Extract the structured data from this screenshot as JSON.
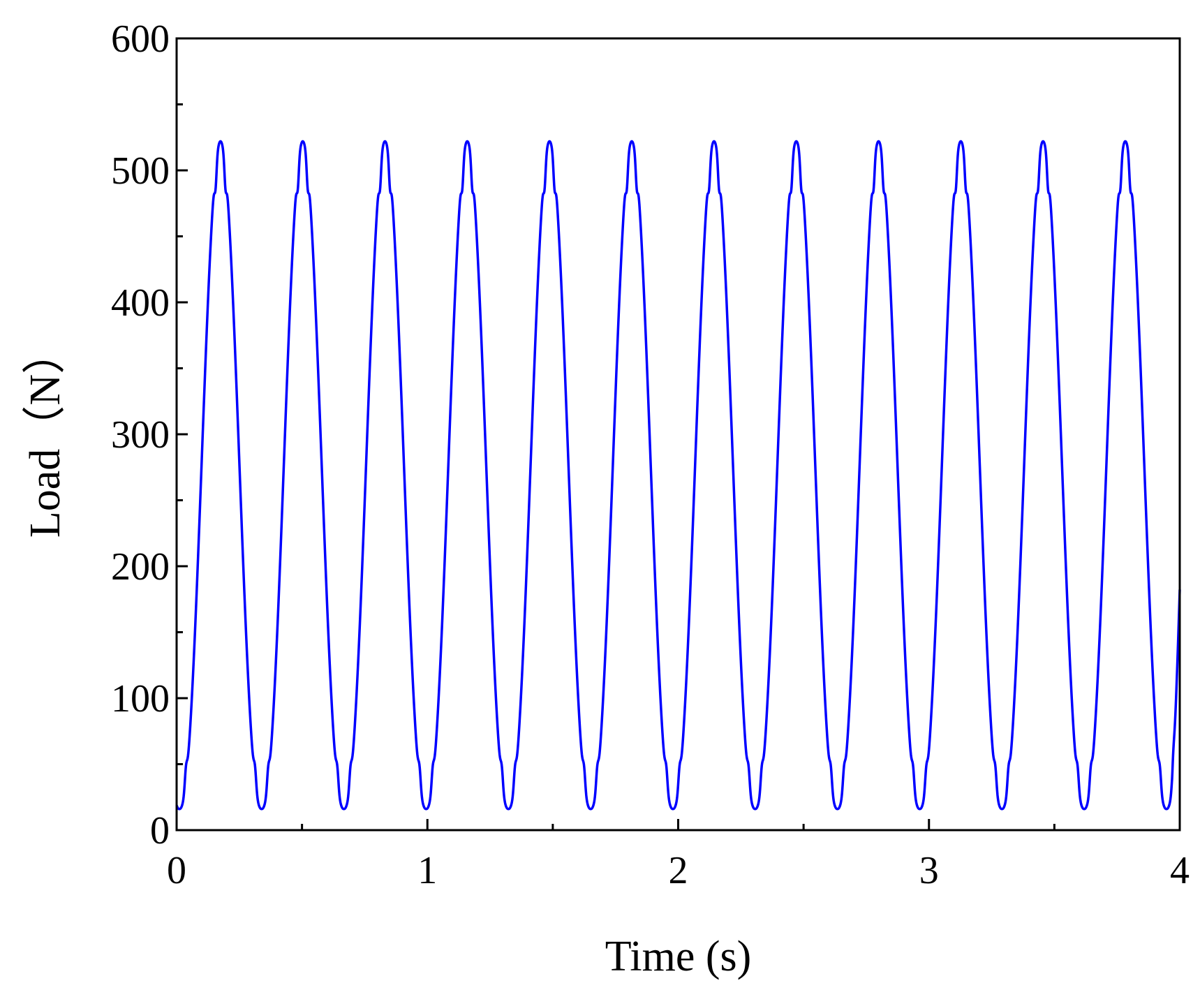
{
  "chart_data": {
    "type": "line",
    "title": "",
    "xlabel": "Time (s)",
    "ylabel": "Load（N）",
    "xlim": [
      0,
      4
    ],
    "ylim": [
      0,
      600
    ],
    "xticks": [
      0,
      1,
      2,
      3,
      4
    ],
    "xtick_labels": [
      "0",
      "1",
      "2",
      "3",
      "4"
    ],
    "yticks": [
      0,
      100,
      200,
      300,
      400,
      500,
      600
    ],
    "ytick_labels": [
      "0",
      "100",
      "200",
      "300",
      "400",
      "500",
      "600"
    ],
    "x_minor_step": 0.5,
    "y_minor_step": 50,
    "grid": false,
    "legend": "none",
    "line_color": "#0000ff",
    "series": [
      {
        "waveform": "periodic",
        "cycles": 12,
        "period_s": 0.328,
        "first_peak_s": 0.175,
        "peak_N": 522,
        "trough_N": 16,
        "x": [
          0.0,
          0.05,
          0.1,
          0.15,
          0.175,
          0.2,
          0.25,
          0.3,
          0.34,
          0.38,
          0.43,
          0.48,
          0.5,
          0.53,
          0.58,
          0.63,
          0.67
        ],
        "y": [
          16,
          30,
          310,
          500,
          522,
          505,
          230,
          40,
          16,
          30,
          300,
          500,
          522,
          505,
          230,
          40,
          17
        ]
      }
    ]
  }
}
